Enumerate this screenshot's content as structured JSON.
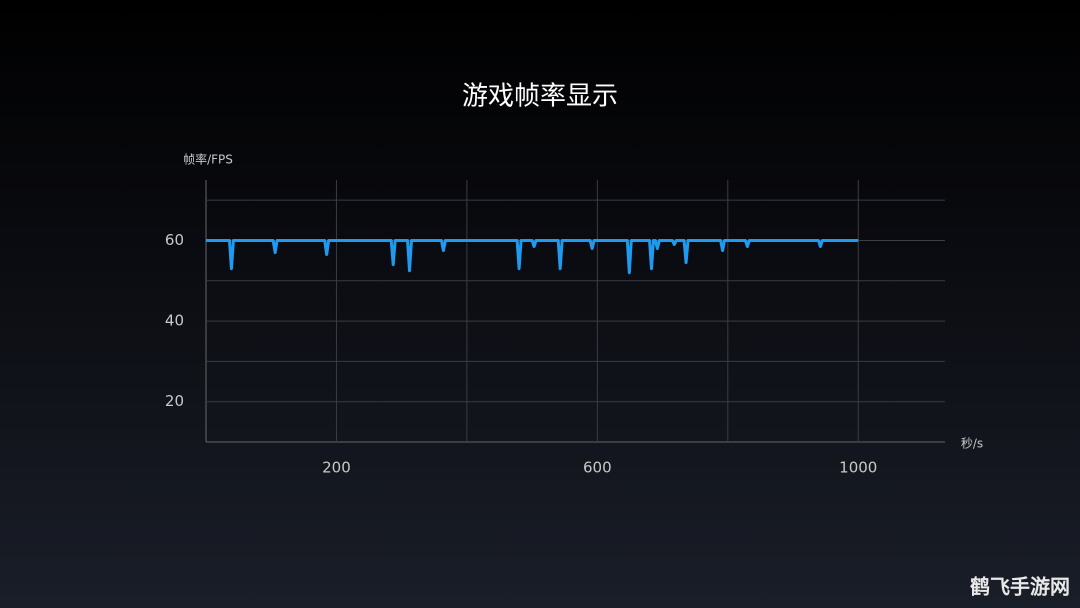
{
  "chart_data": {
    "type": "line",
    "title": "游戏帧率显示",
    "y_label": "帧率/FPS",
    "x_label": "秒/s",
    "watermark": "鹤飞手游网",
    "x": [
      0,
      36,
      39,
      42,
      103,
      106,
      109,
      182,
      185,
      188,
      284,
      287,
      290,
      309,
      312,
      315,
      361,
      364,
      367,
      477,
      480,
      483,
      500,
      503,
      506,
      540,
      543,
      546,
      589,
      592,
      595,
      646,
      649,
      652,
      680,
      683,
      686,
      689,
      692,
      695,
      715,
      718,
      721,
      733,
      736,
      739,
      789,
      792,
      795,
      827,
      830,
      833,
      939,
      942,
      945,
      1000
    ],
    "values": [
      60,
      60,
      53,
      60,
      60,
      57,
      60,
      60,
      56.5,
      60,
      60,
      54,
      60,
      60,
      52.5,
      60,
      60,
      57.5,
      60,
      60,
      53,
      60,
      60,
      58.5,
      60,
      60,
      53,
      60,
      60,
      58,
      60,
      60,
      52,
      60,
      60,
      53,
      60,
      60,
      58,
      60,
      60,
      59,
      60,
      60,
      54.5,
      60,
      60,
      57.5,
      60,
      60,
      58.5,
      60,
      60,
      58.5,
      60,
      60
    ],
    "color": "#1e9bf0",
    "xlim": [
      0,
      1133
    ],
    "ylim": [
      10,
      75
    ],
    "xticks": [
      200,
      600,
      1000
    ],
    "yticks": [
      20,
      40,
      60
    ],
    "xgrid": [
      200,
      400,
      600,
      800,
      1000
    ],
    "ygrid": [
      20,
      30,
      40,
      50,
      60,
      70
    ]
  }
}
